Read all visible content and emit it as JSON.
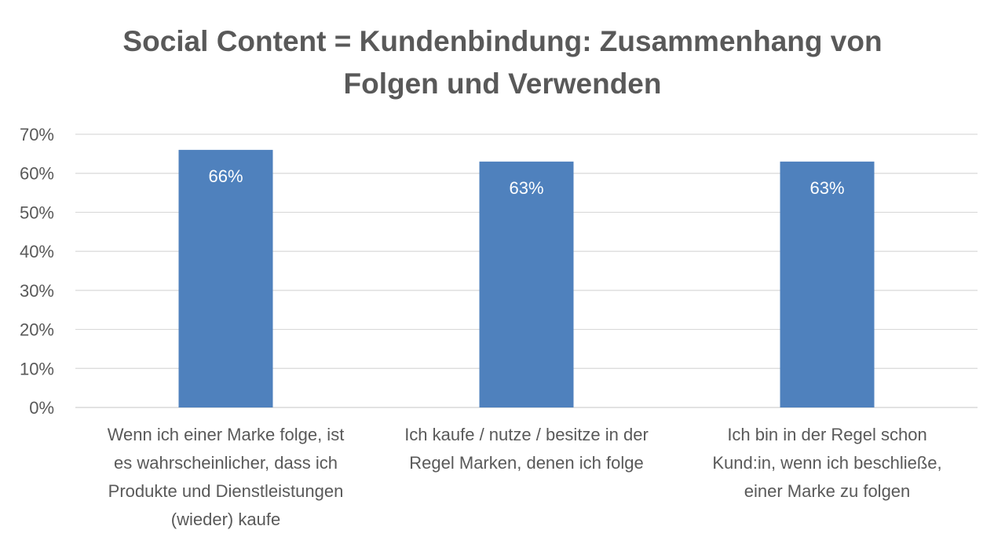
{
  "chart_data": {
    "type": "bar",
    "title_lines": [
      "Social Content = Kundenbindung: Zusammenhang von",
      "Folgen und Verwenden"
    ],
    "categories": [
      [
        "Wenn ich einer Marke folge, ist",
        "es wahrscheinlicher, dass ich",
        "Produkte und Dienstleistungen",
        "(wieder) kaufe"
      ],
      [
        "Ich kaufe / nutze / besitze in der",
        "Regel Marken, denen ich folge"
      ],
      [
        "Ich bin in der Regel schon",
        "Kund:in, wenn ich beschließe,",
        "einer Marke zu folgen"
      ]
    ],
    "values": [
      66,
      63,
      63
    ],
    "data_labels": [
      "66%",
      "63%",
      "63%"
    ],
    "y_ticks": [
      "0%",
      "10%",
      "20%",
      "30%",
      "40%",
      "50%",
      "60%",
      "70%"
    ],
    "ylim": [
      0,
      70
    ],
    "grid": true,
    "legend": "none",
    "bar_color": "#4F81BD",
    "grid_color": "#D9D9D9",
    "text_color": "#595959"
  }
}
